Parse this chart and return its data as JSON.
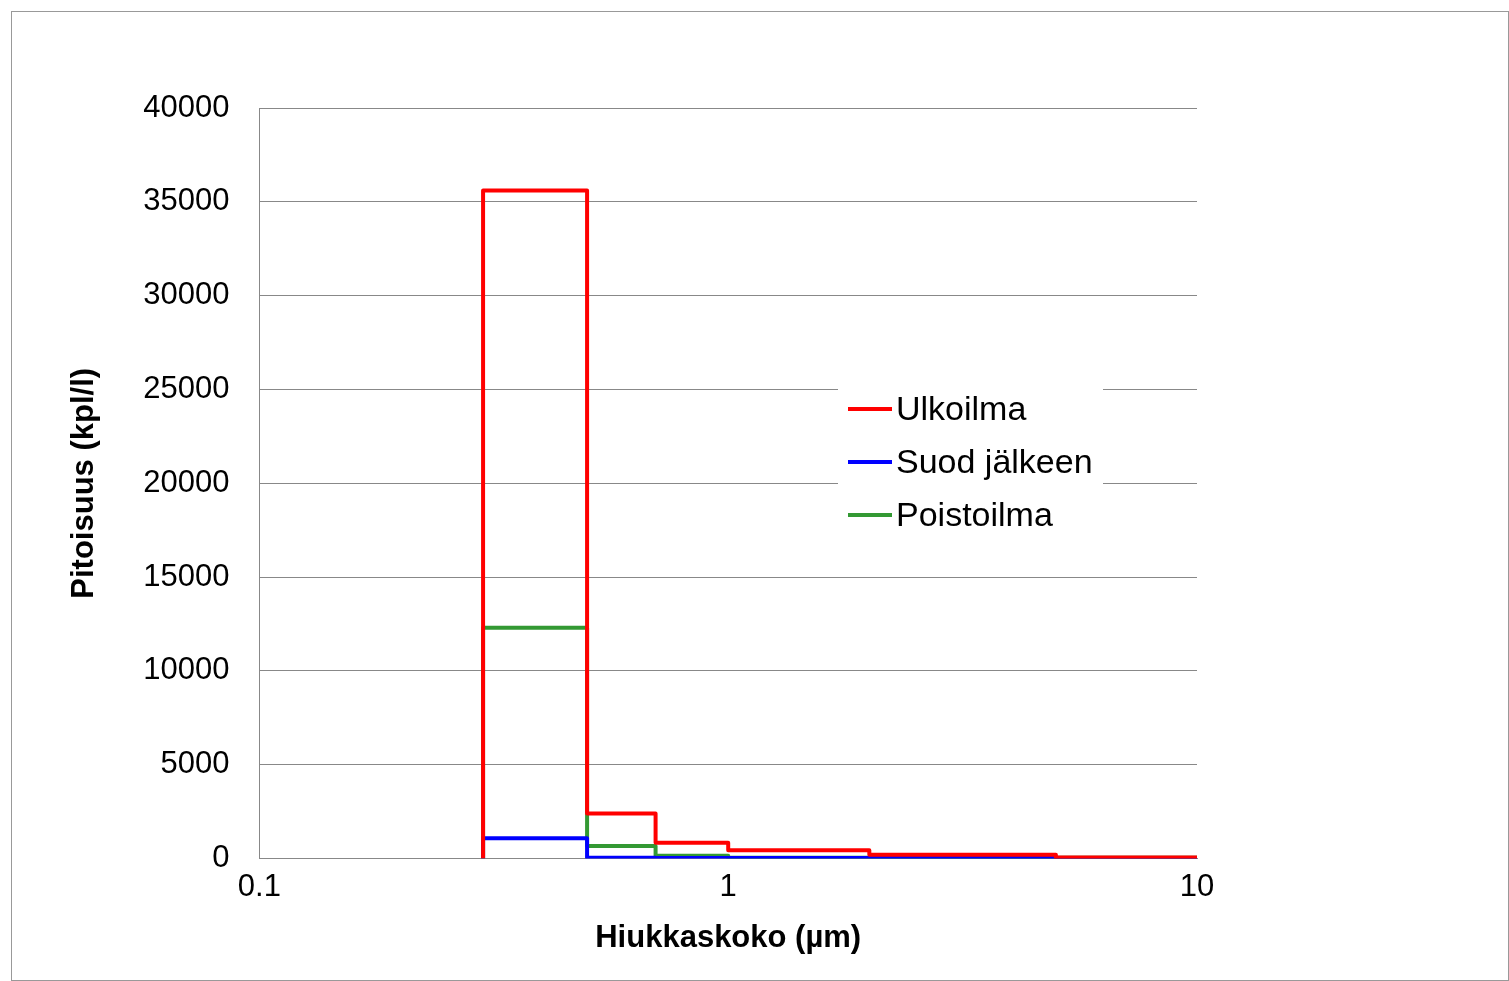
{
  "chart_data": {
    "type": "histogram",
    "xlabel": "Hiukkaskoko (µm)",
    "ylabel": "Pitoisuus (kpl/l)",
    "bins": [
      0.3,
      0.5,
      0.7,
      1,
      2,
      5,
      10
    ],
    "series": [
      {
        "name": "Ulkoilma",
        "color": "#ff0000",
        "values": [
          35600,
          2400,
          850,
          450,
          200,
          60
        ]
      },
      {
        "name": "Suod jälkeen",
        "color": "#0000ff",
        "values": [
          1090,
          50,
          30,
          30,
          30,
          30
        ]
      },
      {
        "name": "Poistoilma",
        "color": "#339933",
        "values": [
          12300,
          670,
          150,
          50,
          50,
          50
        ]
      }
    ],
    "log": "x",
    "xlim": [
      0.1,
      10
    ],
    "xticks": [
      0.1,
      1,
      10
    ],
    "ylim": [
      0,
      40000
    ],
    "yticks": [
      0,
      5000,
      10000,
      15000,
      20000,
      25000,
      30000,
      35000,
      40000
    ],
    "grid": "y",
    "legend": "right"
  }
}
